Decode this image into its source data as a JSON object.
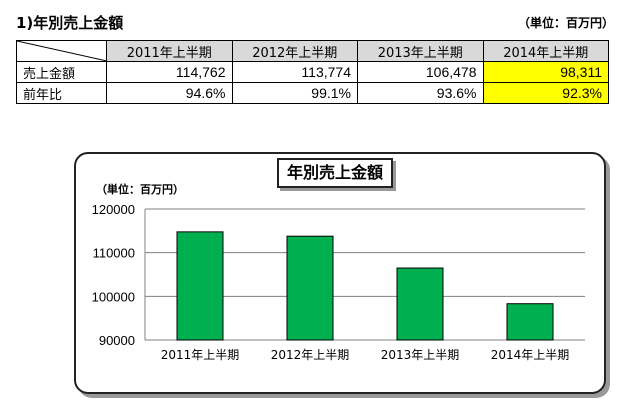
{
  "section_title": "1)年別売上金額",
  "unit_note": "（単位：百万円）",
  "table": {
    "headers": [
      "2011年上半期",
      "2012年上半期",
      "2013年上半期",
      "2014年上半期"
    ],
    "rows": [
      {
        "label": "売上金額",
        "values": [
          "114,762",
          "113,774",
          "106,478",
          "98,311"
        ]
      },
      {
        "label": "前年比",
        "values": [
          "94.6%",
          "99.1%",
          "93.6%",
          "92.3%"
        ]
      }
    ],
    "highlight_color": "#ffff00"
  },
  "chart_data": {
    "type": "bar",
    "title": "年別売上金額",
    "unit": "（単位：百万円）",
    "categories": [
      "2011年上半期",
      "2012年上半期",
      "2013年上半期",
      "2014年上半期"
    ],
    "values": [
      114762,
      113774,
      106478,
      98311
    ],
    "ylim": [
      90000,
      120000
    ],
    "yticks": [
      "120000",
      "110000",
      "100000",
      "90000"
    ],
    "grid": true,
    "bar_color": "#00b050"
  }
}
